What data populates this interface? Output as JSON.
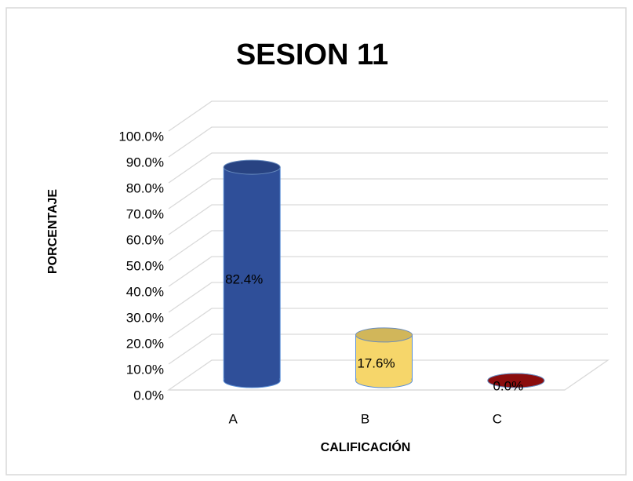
{
  "chart_data": {
    "type": "bar3d",
    "title": "SESION 11",
    "x_label": "CALIFICACIÓN",
    "y_label": "PORCENTAJE",
    "categories": [
      "A",
      "B",
      "C"
    ],
    "values": [
      82.4,
      17.6,
      0.0
    ],
    "value_labels": [
      "82.4%",
      "17.6%",
      "0.0%"
    ],
    "colors": [
      "#2f4f99",
      "#f6d66a",
      "#a30f10"
    ],
    "ylim": [
      0,
      100
    ],
    "yticks": [
      {
        "value": 0,
        "label": "0.0%"
      },
      {
        "value": 10,
        "label": "10.0%"
      },
      {
        "value": 20,
        "label": "20.0%"
      },
      {
        "value": 30,
        "label": "30.0%"
      },
      {
        "value": 40,
        "label": "40.0%"
      },
      {
        "value": 50,
        "label": "50.0%"
      },
      {
        "value": 60,
        "label": "60.0%"
      },
      {
        "value": 70,
        "label": "70.0%"
      },
      {
        "value": 80,
        "label": "80.0%"
      },
      {
        "value": 90,
        "label": "90.0%"
      },
      {
        "value": 100,
        "label": "100.0%"
      }
    ],
    "grid": true
  }
}
